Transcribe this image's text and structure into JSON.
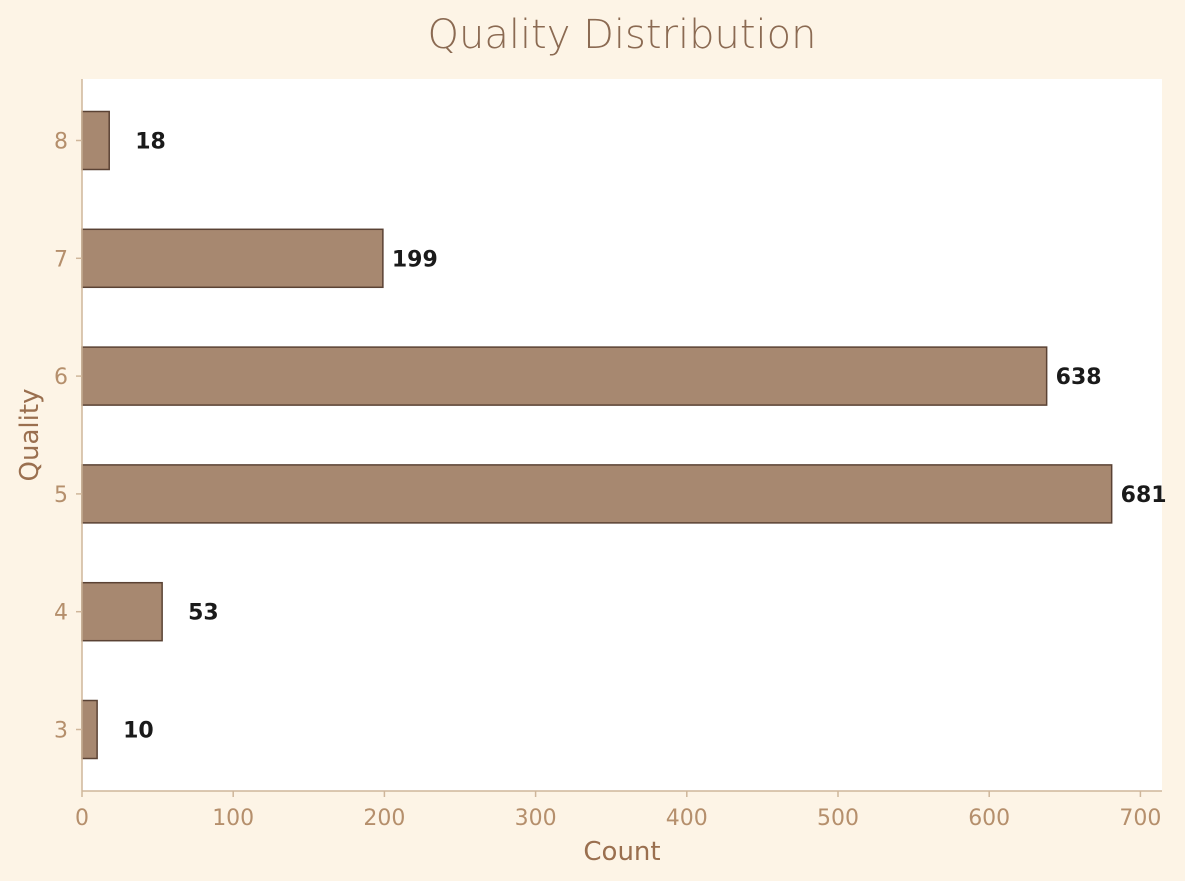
{
  "colors": {
    "page_background": "#fdf4e6",
    "plot_background": "#ffffff",
    "bar_fill": "#a78870",
    "bar_edge": "#5a4234",
    "axis_line": "#cfb69a",
    "tick_label": "#b58f6c",
    "axis_title": "#9a6f4f",
    "title": "#8b6a52",
    "data_label": "#1a1a1a"
  },
  "chart_data": {
    "type": "bar",
    "orientation": "horizontal",
    "title": "Quality Distribution",
    "xlabel": "Count",
    "ylabel": "Quality",
    "categories": [
      "3",
      "4",
      "5",
      "6",
      "7",
      "8"
    ],
    "values": [
      10,
      53,
      681,
      638,
      199,
      18
    ],
    "value_labels": [
      "10",
      "53",
      "681",
      "638",
      "199",
      "18"
    ],
    "xlim": [
      0,
      715
    ],
    "xticks": [
      0,
      100,
      200,
      300,
      400,
      500,
      600,
      700
    ],
    "xtick_labels": [
      "0",
      "100",
      "200",
      "300",
      "400",
      "500",
      "600",
      "700"
    ],
    "grid": false,
    "legend": "none"
  }
}
